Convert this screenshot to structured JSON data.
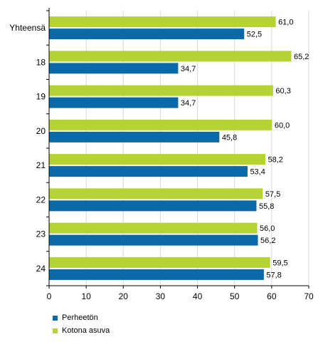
{
  "chart_data": {
    "type": "bar",
    "orientation": "horizontal",
    "categories": [
      "Yhteensä",
      "18",
      "19",
      "20",
      "21",
      "22",
      "23",
      "24"
    ],
    "series": [
      {
        "name": "Kotona asuva",
        "color": "#b5d334",
        "values": [
          61.0,
          65.2,
          60.3,
          60.0,
          58.2,
          57.5,
          56.0,
          59.5
        ],
        "labels": [
          "61,0",
          "65,2",
          "60,3",
          "60,0",
          "58,2",
          "57,5",
          "56,0",
          "59,5"
        ]
      },
      {
        "name": "Perheetön",
        "color": "#0a6aa8",
        "values": [
          52.5,
          34.7,
          34.7,
          45.8,
          53.4,
          55.8,
          56.2,
          57.8
        ],
        "labels": [
          "52,5",
          "34,7",
          "34,7",
          "45,8",
          "53,4",
          "55,8",
          "56,2",
          "57,8"
        ]
      }
    ],
    "x_ticks": [
      "0",
      "10",
      "20",
      "30",
      "40",
      "50",
      "60",
      "70"
    ],
    "xlim": [
      0,
      70
    ],
    "grid": true,
    "legend_position": "bottom-left"
  },
  "legend": [
    {
      "name": "Perheetön",
      "color": "#0a6aa8"
    },
    {
      "name": "Kotona asuva",
      "color": "#b5d334"
    }
  ]
}
